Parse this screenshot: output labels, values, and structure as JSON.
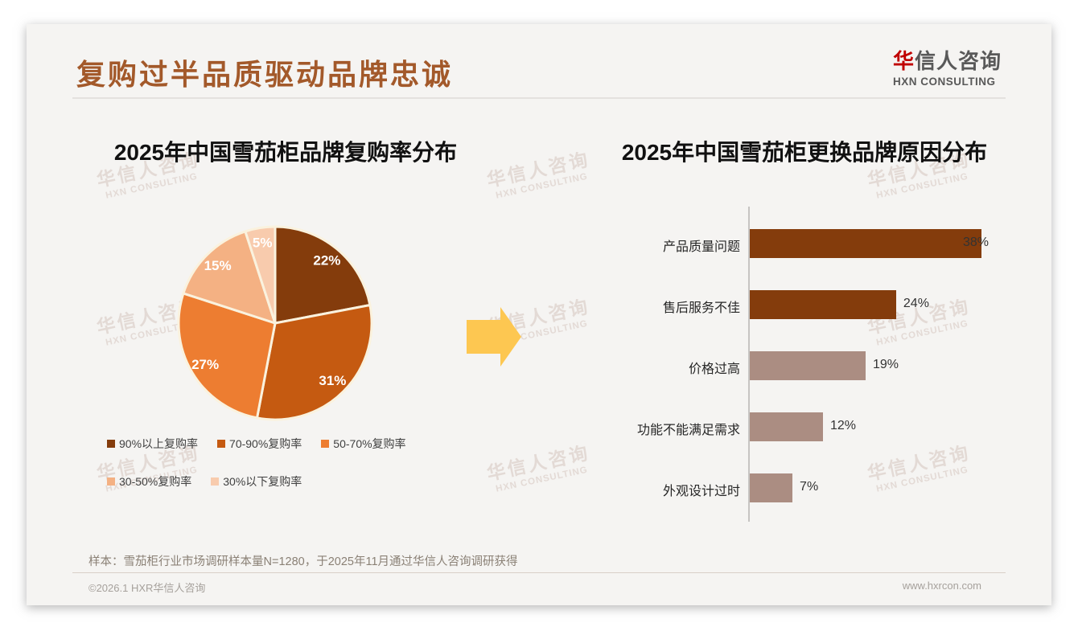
{
  "header": {
    "title": "复购过半品质驱动品牌忠诚",
    "logo": {
      "zh_accent": "华",
      "zh_rest": "信人咨询",
      "en": "HXN CONSULTING"
    }
  },
  "watermark": {
    "zh": "华信人咨询",
    "en": "HXN CONSULTING"
  },
  "colors": {
    "title_brown": "#A3592A",
    "logo_red": "#C00000",
    "logo_gray": "#595959",
    "arrow_yellow": "#FDC751",
    "card_background": "#F5F4F2",
    "pie_border": "#FAF2DE",
    "bar_dark_brown": "#843C0C",
    "bar_mauve": "#AB8D82",
    "axis_gray": "#C6C4C2"
  },
  "chart_data": [
    {
      "type": "pie",
      "title": "2025年中国雪茄柜品牌复购率分布",
      "labels": [
        "90%以上复购率",
        "70-90%复购率",
        "50-70%复购率",
        "30-50%复购率",
        "30%以下复购率"
      ],
      "values": [
        22,
        31,
        27,
        15,
        5
      ],
      "data_labels": [
        "22%",
        "31%",
        "27%",
        "15%",
        "5%"
      ],
      "slice_colors": [
        "#843C0C",
        "#C55A11",
        "#ED7D31",
        "#F4B183",
        "#F8CBAD"
      ],
      "start_angle_deg": 0,
      "direction": "clockwise",
      "legend_position": "bottom"
    },
    {
      "type": "bar",
      "title": "2025年中国雪茄柜更换品牌原因分布",
      "orientation": "horizontal",
      "categories": [
        "产品质量问题",
        "售后服务不佳",
        "价格过高",
        "功能不能满足需求",
        "外观设计过时"
      ],
      "values": [
        38,
        24,
        19,
        12,
        7
      ],
      "value_labels": [
        "38%",
        "24%",
        "19%",
        "12%",
        "7%"
      ],
      "bar_colors": [
        "#843C0C",
        "#843C0C",
        "#AB8D82",
        "#AB8D82",
        "#AB8D82"
      ],
      "xlim": [
        0,
        40
      ],
      "grid": false,
      "legend_position": "none"
    }
  ],
  "footnote": "样本：雪茄柜行业市场调研样本量N=1280，于2025年11月通过华信人咨询调研获得",
  "footer": {
    "copyright": "©2026.1 HXR华信人咨询",
    "website": "www.hxrcon.com"
  }
}
